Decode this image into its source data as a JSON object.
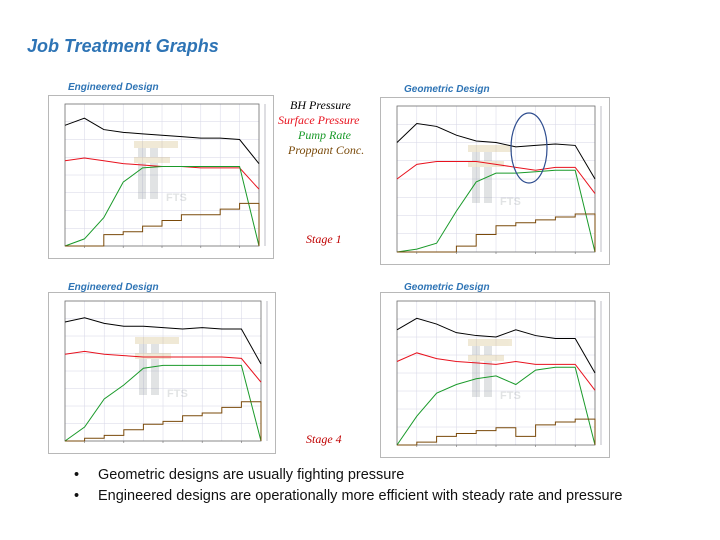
{
  "slide": {
    "title": "Job Treatment Graphs"
  },
  "legend": [
    {
      "label": "BH Pressure",
      "color": "#000000"
    },
    {
      "label": "Surface Pressure",
      "color": "#e8121e"
    },
    {
      "label": "Pump Rate",
      "color": "#1a9a2a"
    },
    {
      "label": "Proppant Conc.",
      "color": "#7a4a0a"
    }
  ],
  "stages": {
    "stage1": "Stage 1",
    "stage4": "Stage 4"
  },
  "bullets": [
    "Geometric designs are usually fighting pressure",
    "Engineered designs are operationally more efficient with steady rate and pressure"
  ],
  "watermark": "FTS",
  "chart_data": [
    {
      "type": "line",
      "title": "Engineered Design",
      "stage": "Stage 1",
      "x": [
        0,
        10,
        20,
        30,
        40,
        50,
        60,
        70,
        80,
        90,
        100
      ],
      "series": [
        {
          "name": "BH Pressure",
          "values": [
            85,
            90,
            82,
            80,
            79,
            78,
            77,
            76,
            76,
            75,
            58
          ]
        },
        {
          "name": "Surface Pressure",
          "values": [
            60,
            62,
            60,
            58,
            57,
            56,
            56,
            55,
            55,
            55,
            40
          ]
        },
        {
          "name": "Pump Rate",
          "values": [
            0,
            5,
            20,
            45,
            55,
            56,
            56,
            56,
            56,
            56,
            0
          ]
        },
        {
          "name": "Proppant Conc.",
          "values": [
            0,
            0,
            8,
            10,
            14,
            18,
            22,
            22,
            26,
            30,
            0
          ]
        }
      ]
    },
    {
      "type": "line",
      "title": "Geometric Design",
      "stage": "Stage 1",
      "x": [
        0,
        10,
        20,
        30,
        40,
        50,
        60,
        70,
        80,
        90,
        100
      ],
      "series": [
        {
          "name": "BH Pressure",
          "values": [
            75,
            88,
            86,
            80,
            76,
            75,
            72,
            73,
            74,
            73,
            50
          ]
        },
        {
          "name": "Surface Pressure",
          "values": [
            50,
            60,
            62,
            62,
            62,
            60,
            58,
            56,
            58,
            58,
            40
          ]
        },
        {
          "name": "Pump Rate",
          "values": [
            0,
            2,
            6,
            28,
            48,
            54,
            54,
            55,
            56,
            56,
            0
          ]
        },
        {
          "name": "Proppant Conc.",
          "values": [
            0,
            0,
            0,
            4,
            12,
            18,
            20,
            22,
            24,
            26,
            0
          ]
        }
      ]
    },
    {
      "type": "line",
      "title": "Engineered Design",
      "stage": "Stage 4",
      "x": [
        0,
        10,
        20,
        30,
        40,
        50,
        60,
        70,
        80,
        90,
        100
      ],
      "series": [
        {
          "name": "BH Pressure",
          "values": [
            85,
            88,
            84,
            82,
            82,
            81,
            80,
            81,
            80,
            80,
            55
          ]
        },
        {
          "name": "Surface Pressure",
          "values": [
            62,
            64,
            62,
            61,
            60,
            60,
            60,
            60,
            60,
            59,
            42
          ]
        },
        {
          "name": "Pump Rate",
          "values": [
            0,
            10,
            30,
            40,
            52,
            54,
            54,
            54,
            54,
            54,
            0
          ]
        },
        {
          "name": "Proppant Conc.",
          "values": [
            0,
            2,
            4,
            8,
            12,
            14,
            18,
            20,
            24,
            28,
            0
          ]
        }
      ]
    },
    {
      "type": "line",
      "title": "Geometric Design",
      "stage": "Stage 4",
      "x": [
        0,
        10,
        20,
        30,
        40,
        50,
        60,
        70,
        80,
        90,
        100
      ],
      "series": [
        {
          "name": "BH Pressure",
          "values": [
            80,
            88,
            84,
            78,
            76,
            75,
            80,
            76,
            74,
            74,
            50
          ]
        },
        {
          "name": "Surface Pressure",
          "values": [
            58,
            64,
            60,
            58,
            57,
            56,
            58,
            56,
            56,
            56,
            38
          ]
        },
        {
          "name": "Pump Rate",
          "values": [
            0,
            20,
            36,
            42,
            46,
            48,
            42,
            52,
            54,
            54,
            0
          ]
        },
        {
          "name": "Proppant Conc.",
          "values": [
            0,
            2,
            6,
            8,
            10,
            12,
            6,
            14,
            16,
            18,
            0
          ]
        }
      ]
    }
  ]
}
